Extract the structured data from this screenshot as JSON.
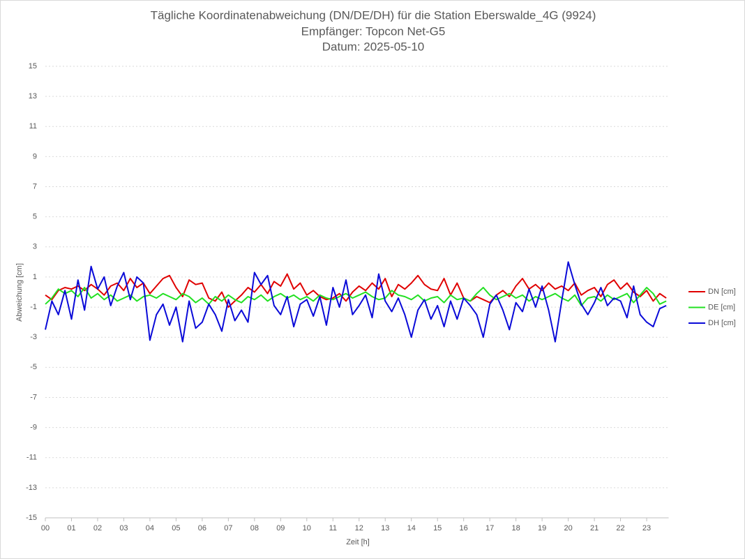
{
  "chart_data": {
    "type": "line",
    "title": [
      "Tägliche Koordinatenabweichung (DN/DE/DH) für die Station Eberswalde_4G (9924)",
      "Empfänger: Topcon Net-G5",
      "Datum: 2025-05-10"
    ],
    "xlabel": "Zeit [h]",
    "ylabel": "Abweichung [cm]",
    "xlim": [
      0,
      24
    ],
    "ylim": [
      -15,
      15
    ],
    "yticks": [
      -15,
      -13,
      -11,
      -9,
      -7,
      -5,
      -3,
      -1,
      1,
      3,
      5,
      7,
      9,
      11,
      13,
      15
    ],
    "xticks": [
      {
        "value": 0,
        "label": "00"
      },
      {
        "value": 1,
        "label": "01"
      },
      {
        "value": 2,
        "label": "02"
      },
      {
        "value": 3,
        "label": "03"
      },
      {
        "value": 4,
        "label": "04"
      },
      {
        "value": 5,
        "label": "05"
      },
      {
        "value": 6,
        "label": "06"
      },
      {
        "value": 7,
        "label": "07"
      },
      {
        "value": 8,
        "label": "08"
      },
      {
        "value": 9,
        "label": "09"
      },
      {
        "value": 10,
        "label": "10"
      },
      {
        "value": 11,
        "label": "11"
      },
      {
        "value": 12,
        "label": "12"
      },
      {
        "value": 13,
        "label": "13"
      },
      {
        "value": 14,
        "label": "14"
      },
      {
        "value": 15,
        "label": "15"
      },
      {
        "value": 16,
        "label": "16"
      },
      {
        "value": 17,
        "label": "17"
      },
      {
        "value": 18,
        "label": "18"
      },
      {
        "value": 19,
        "label": "19"
      },
      {
        "value": 20,
        "label": "20"
      },
      {
        "value": 21,
        "label": "21"
      },
      {
        "value": 22,
        "label": "22"
      },
      {
        "value": 23,
        "label": "23"
      }
    ],
    "grid": true,
    "legend": "right",
    "x": [
      0,
      0.25,
      0.5,
      0.75,
      1,
      1.25,
      1.5,
      1.75,
      2,
      2.25,
      2.5,
      2.75,
      3,
      3.25,
      3.5,
      3.75,
      4,
      4.25,
      4.5,
      4.75,
      5,
      5.25,
      5.5,
      5.75,
      6,
      6.25,
      6.5,
      6.75,
      7,
      7.25,
      7.5,
      7.75,
      8,
      8.25,
      8.5,
      8.75,
      9,
      9.25,
      9.5,
      9.75,
      10,
      10.25,
      10.5,
      10.75,
      11,
      11.25,
      11.5,
      11.75,
      12,
      12.25,
      12.5,
      12.75,
      13,
      13.25,
      13.5,
      13.75,
      14,
      14.25,
      14.5,
      14.75,
      15,
      15.25,
      15.5,
      15.75,
      16,
      16.25,
      16.5,
      16.75,
      17,
      17.25,
      17.5,
      17.75,
      18,
      18.25,
      18.5,
      18.75,
      19,
      19.25,
      19.5,
      19.75,
      20,
      20.25,
      20.5,
      20.75,
      21,
      21.25,
      21.5,
      21.75,
      22,
      22.25,
      22.5,
      22.75,
      23,
      23.25,
      23.5,
      23.75
    ],
    "series": [
      {
        "name": "DN [cm]",
        "color": "#e00000",
        "values": [
          -0.2,
          -0.5,
          0.1,
          0.3,
          0.2,
          0.4,
          0.1,
          0.5,
          0.2,
          -0.2,
          0.4,
          0.6,
          0.1,
          0.9,
          0.3,
          0.6,
          -0.1,
          0.4,
          0.9,
          1.1,
          0.3,
          -0.3,
          0.8,
          0.5,
          0.6,
          -0.4,
          -0.6,
          0.0,
          -1.0,
          -0.6,
          -0.2,
          0.3,
          0.0,
          0.5,
          -0.1,
          0.7,
          0.4,
          1.2,
          0.2,
          0.6,
          -0.2,
          0.1,
          -0.3,
          -0.5,
          -0.4,
          -0.1,
          -0.6,
          0.0,
          0.4,
          0.1,
          0.6,
          0.2,
          0.9,
          -0.3,
          0.5,
          0.2,
          0.6,
          1.1,
          0.5,
          0.2,
          0.1,
          0.9,
          -0.2,
          0.6,
          -0.4,
          -0.6,
          -0.3,
          -0.5,
          -0.7,
          -0.2,
          0.1,
          -0.3,
          0.4,
          0.9,
          0.2,
          0.5,
          0.1,
          0.6,
          0.2,
          0.4,
          0.1,
          0.6,
          -0.2,
          0.1,
          0.3,
          -0.3,
          0.5,
          0.8,
          0.2,
          0.6,
          0.0,
          -0.3,
          0.1,
          -0.6,
          -0.1,
          -0.4
        ]
      },
      {
        "name": "DE [cm]",
        "color": "#22e022",
        "values": [
          -0.8,
          -0.4,
          0.2,
          -0.1,
          0.1,
          -0.3,
          0.3,
          -0.4,
          -0.1,
          -0.5,
          -0.2,
          -0.6,
          -0.4,
          -0.2,
          -0.6,
          -0.3,
          -0.2,
          -0.4,
          -0.1,
          -0.3,
          -0.5,
          -0.1,
          -0.3,
          -0.7,
          -0.4,
          -0.8,
          -0.3,
          -0.6,
          -0.2,
          -0.5,
          -0.7,
          -0.3,
          -0.5,
          -0.2,
          -0.6,
          -0.3,
          -0.1,
          -0.4,
          -0.2,
          -0.5,
          -0.3,
          -0.6,
          -0.2,
          -0.4,
          -0.5,
          -0.3,
          -0.1,
          -0.4,
          -0.2,
          0.0,
          -0.3,
          -0.5,
          -0.4,
          0.1,
          -0.2,
          -0.3,
          -0.5,
          -0.2,
          -0.6,
          -0.4,
          -0.3,
          -0.7,
          -0.2,
          -0.5,
          -0.4,
          -0.6,
          -0.1,
          0.3,
          -0.2,
          -0.5,
          -0.3,
          -0.1,
          -0.4,
          -0.2,
          -0.6,
          -0.3,
          -0.5,
          -0.3,
          -0.1,
          -0.4,
          -0.6,
          -0.2,
          -0.9,
          -0.4,
          -0.3,
          -0.6,
          -0.2,
          -0.5,
          -0.3,
          -0.1,
          -0.7,
          -0.2,
          0.3,
          -0.1,
          -0.8,
          -0.6
        ]
      },
      {
        "name": "DH [cm]",
        "color": "#0a0ad8",
        "values": [
          -2.5,
          -0.6,
          -1.5,
          0.1,
          -1.8,
          0.8,
          -1.2,
          1.7,
          0.2,
          1.0,
          -0.9,
          0.4,
          1.3,
          -0.5,
          1.0,
          0.6,
          -3.2,
          -1.5,
          -0.8,
          -2.2,
          -1.0,
          -3.3,
          -0.6,
          -2.4,
          -2.0,
          -0.8,
          -1.5,
          -2.6,
          -0.5,
          -1.9,
          -1.2,
          -2.0,
          1.3,
          0.5,
          1.1,
          -0.9,
          -1.5,
          -0.3,
          -2.3,
          -0.8,
          -0.5,
          -1.6,
          -0.3,
          -2.2,
          0.3,
          -1.0,
          0.8,
          -1.5,
          -0.9,
          -0.2,
          -1.7,
          1.2,
          -0.6,
          -1.3,
          -0.4,
          -1.5,
          -3.0,
          -1.2,
          -0.5,
          -1.8,
          -0.9,
          -2.3,
          -0.6,
          -1.8,
          -0.4,
          -0.9,
          -1.5,
          -3.0,
          -0.8,
          -0.2,
          -1.2,
          -2.5,
          -0.7,
          -1.3,
          0.2,
          -1.0,
          0.4,
          -1.2,
          -3.3,
          -0.6,
          2.0,
          0.5,
          -0.8,
          -1.5,
          -0.7,
          0.3,
          -0.9,
          -0.4,
          -0.6,
          -1.7,
          0.4,
          -1.5,
          -2.0,
          -2.3,
          -1.1,
          -0.9
        ]
      }
    ]
  }
}
